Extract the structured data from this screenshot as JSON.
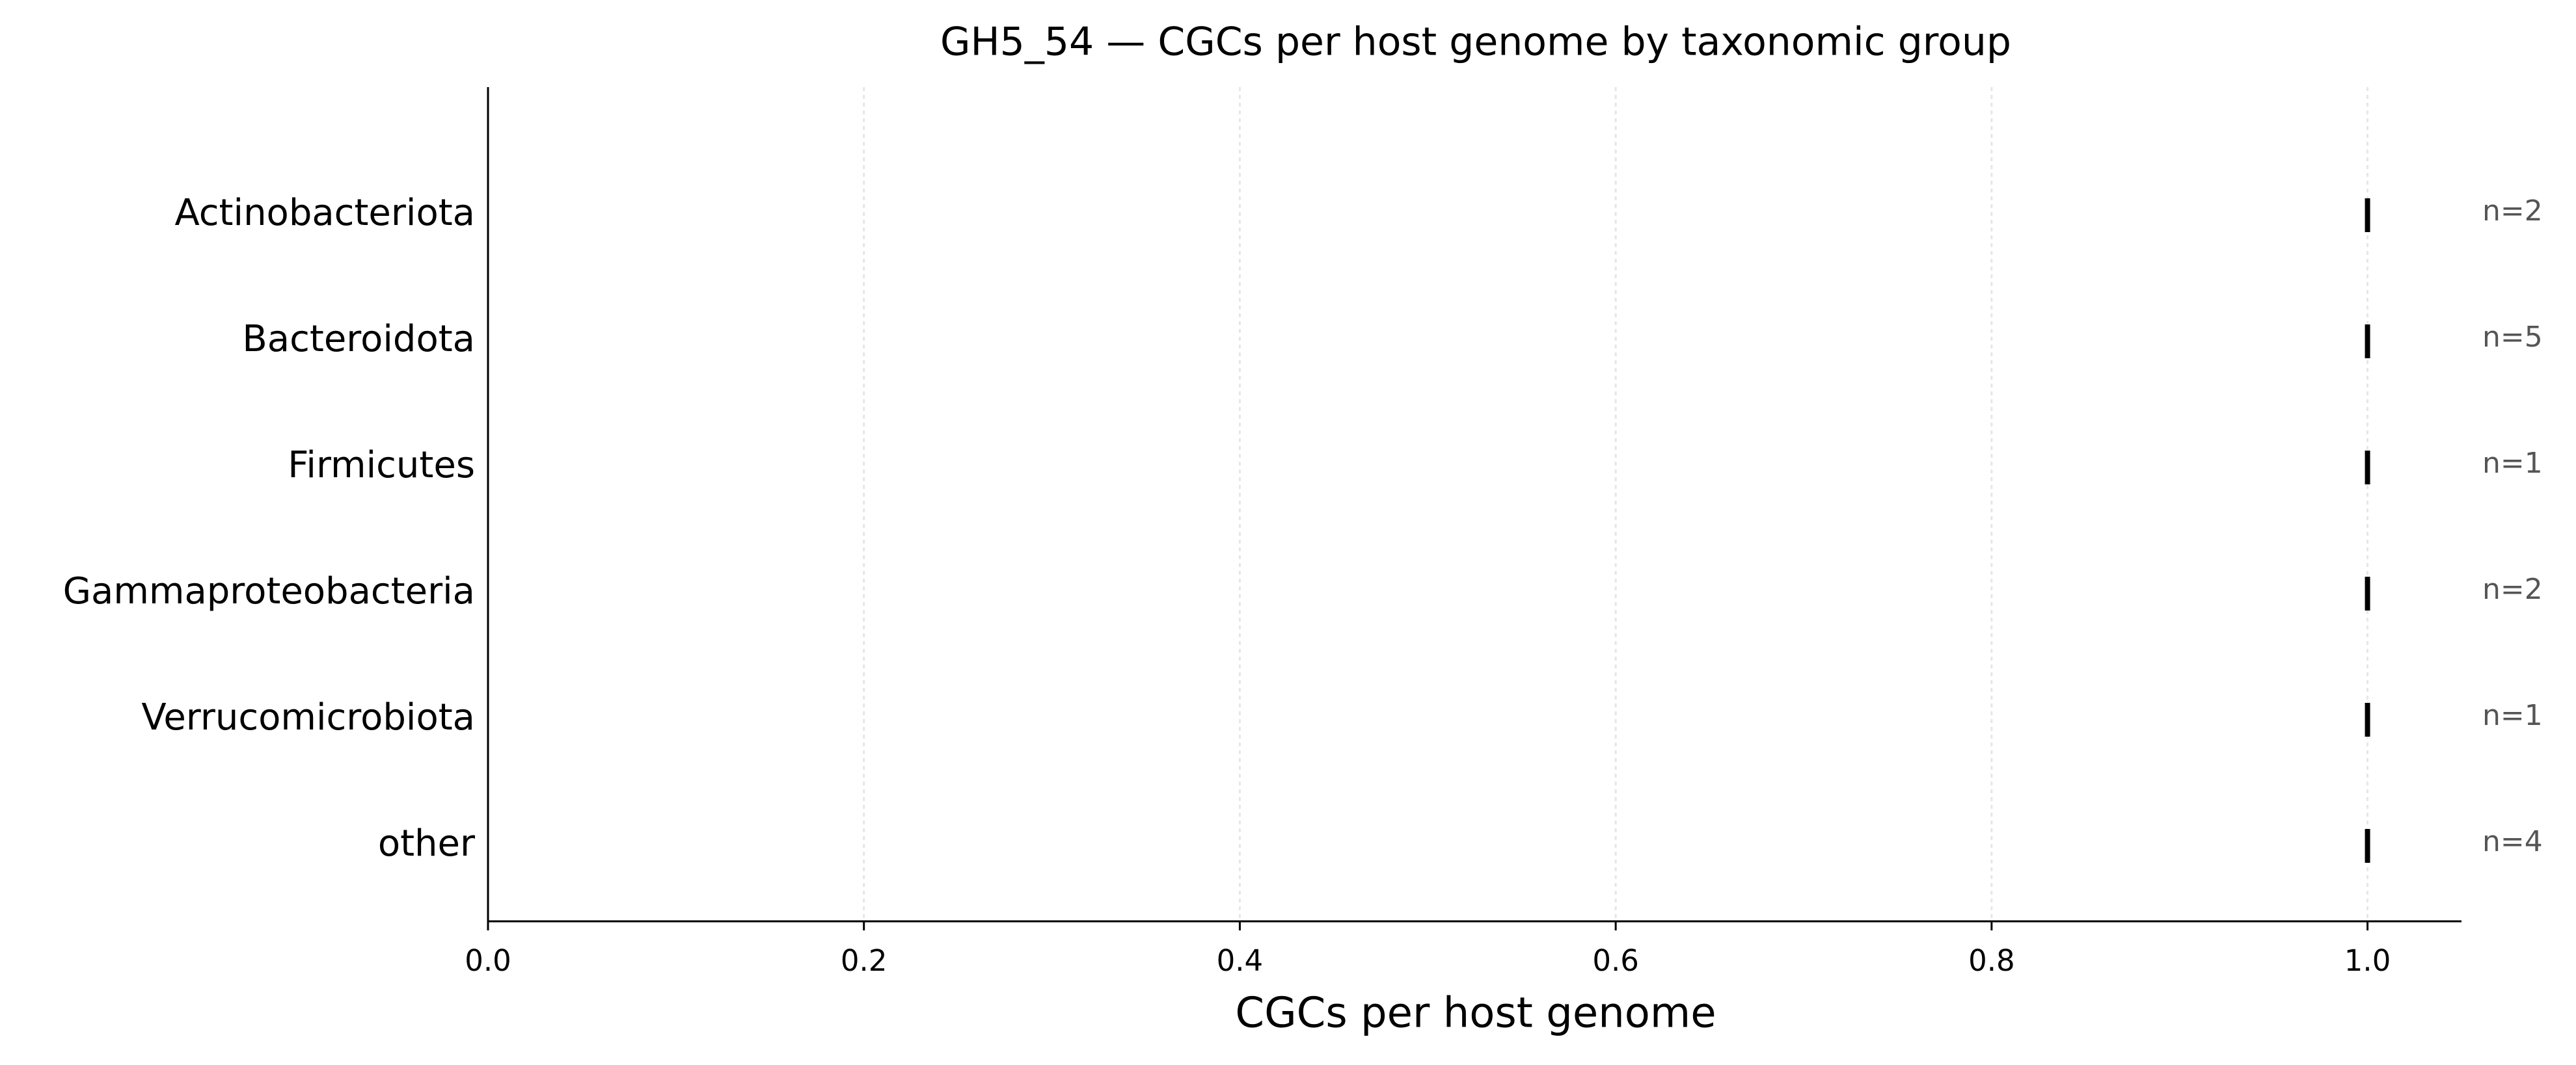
{
  "chart_data": {
    "type": "box",
    "title": "GH5_54 — CGCs per host genome by taxonomic group",
    "xlabel": "CGCs per host genome",
    "categories": [
      "Actinobacteriota",
      "Bacteroidota",
      "Firmicutes",
      "Gammaproteobacteria",
      "Verrucomicrobiota",
      "other"
    ],
    "values": [
      1,
      1,
      1,
      1,
      1,
      1
    ],
    "annotations": [
      "n=2",
      "n=5",
      "n=1",
      "n=2",
      "n=1",
      "n=4"
    ],
    "color": "#000000",
    "xlim": [
      0,
      1.05
    ],
    "xticks": [
      {
        "value": 0,
        "label": "0.0"
      },
      0.2,
      0.4,
      0.6,
      0.8,
      {
        "value": 1,
        "label": "1.0"
      }
    ],
    "grid": true
  }
}
